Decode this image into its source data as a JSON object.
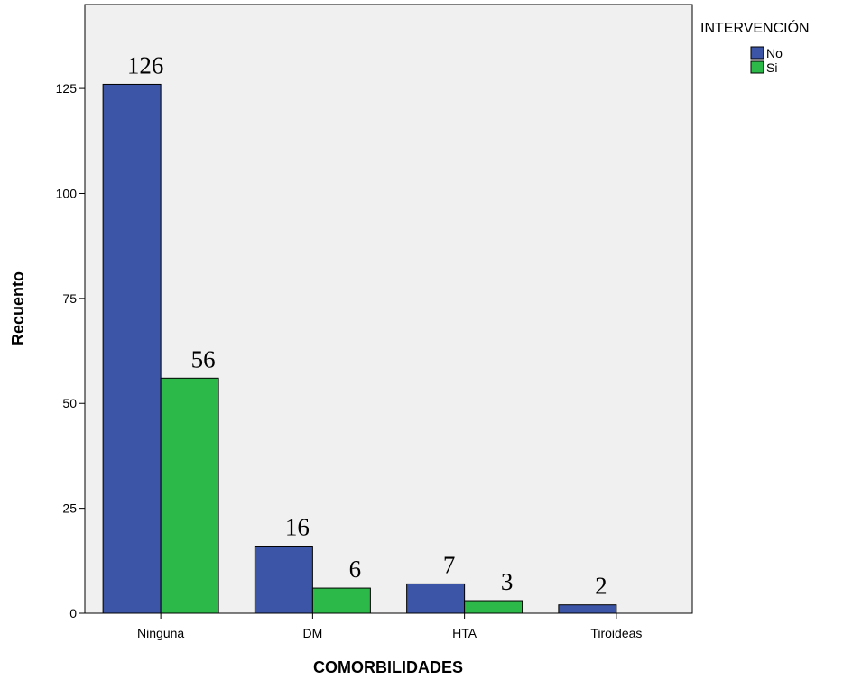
{
  "chart_data": {
    "type": "bar",
    "xlabel": "COMORBILIDADES",
    "ylabel": "Recuento",
    "ylim": [
      0,
      145
    ],
    "yticks": [
      0,
      25,
      50,
      75,
      100,
      125
    ],
    "categories": [
      "Ninguna",
      "DM",
      "HTA",
      "Tiroideas"
    ],
    "legend": {
      "title": "INTERVENCIÓN",
      "position": "top-right outside plot"
    },
    "series": [
      {
        "name": "No",
        "color": "#3d55a6",
        "values": [
          126,
          16,
          7,
          2
        ],
        "labels": [
          "126",
          "16",
          "7",
          "2"
        ]
      },
      {
        "name": "Si",
        "color": "#2db94a",
        "values": [
          56,
          6,
          3,
          0
        ],
        "labels": [
          "56",
          "6",
          "3",
          ""
        ]
      }
    ],
    "plot_background": "#f0f0f0",
    "grid": false
  }
}
